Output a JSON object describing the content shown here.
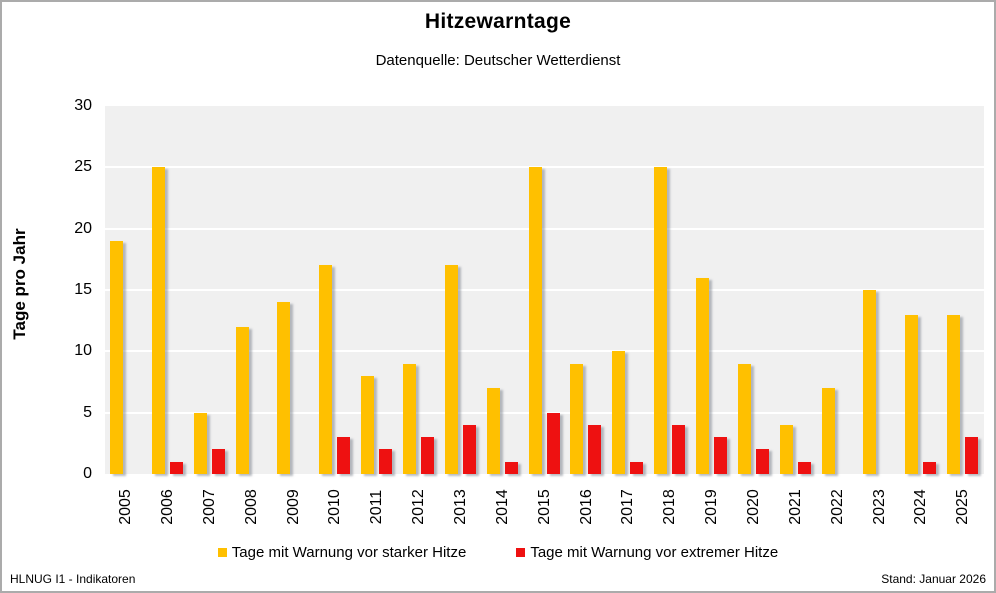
{
  "header": {
    "title": "Hitzewarntage",
    "subtitle": "Datenquelle: Deutscher Wetterdienst"
  },
  "footer": {
    "left": "HLNUG I1 - Indikatoren",
    "right": "Stand: Januar 2026"
  },
  "colors": {
    "strong_heat": "#FFC000",
    "extreme_heat": "#EE1111",
    "panel": "#F0F0F0",
    "gridline": "#FFFFFF",
    "border": "#ABABAB"
  },
  "chart_data": {
    "type": "bar",
    "title": "Hitzewarntage",
    "subtitle": "Datenquelle: Deutscher Wetterdienst",
    "ylabel": "Tage pro Jahr",
    "xlabel": "",
    "ylim": [
      0,
      30
    ],
    "ytick_step": 5,
    "grid": true,
    "legend_position": "bottom",
    "categories": [
      "2005",
      "2006",
      "2007",
      "2008",
      "2009",
      "2010",
      "2011",
      "2012",
      "2013",
      "2014",
      "2015",
      "2016",
      "2017",
      "2018",
      "2019",
      "2020",
      "2021",
      "2022",
      "2023",
      "2024",
      "2025"
    ],
    "series": [
      {
        "name": "Tage mit Warnung vor starker Hitze",
        "key": "starke-hitze",
        "color": "#FFC000",
        "values": [
          19,
          25,
          5,
          12,
          14,
          17,
          8,
          9,
          17,
          7,
          25,
          9,
          10,
          25,
          16,
          9,
          4,
          7,
          15,
          13,
          13
        ]
      },
      {
        "name": "Tage mit Warnung vor extremer Hitze",
        "key": "extreme-hitze",
        "color": "#EE1111",
        "values": [
          0,
          1,
          2,
          0,
          0,
          3,
          2,
          3,
          4,
          1,
          5,
          4,
          1,
          4,
          3,
          2,
          1,
          0,
          0,
          1,
          3
        ]
      }
    ]
  }
}
